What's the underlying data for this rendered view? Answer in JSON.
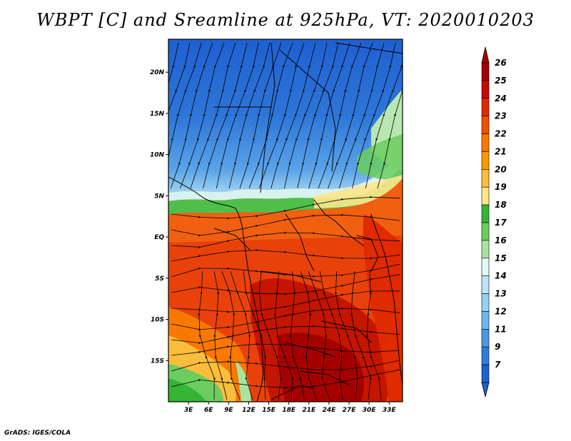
{
  "title": "WBPT [C] and Sreamline at 925hPa, VT: 2020010203",
  "footer": "GrADS: IGES/COLA",
  "map": {
    "lon_range": [
      0,
      35
    ],
    "lat_range": [
      -20,
      24
    ],
    "lat_ticks": [
      {
        "value": 20,
        "label": "20N"
      },
      {
        "value": 15,
        "label": "15N"
      },
      {
        "value": 10,
        "label": "10N"
      },
      {
        "value": 5,
        "label": "5N"
      },
      {
        "value": 0,
        "label": "EQ"
      },
      {
        "value": -5,
        "label": "5S"
      },
      {
        "value": -10,
        "label": "10S"
      },
      {
        "value": -15,
        "label": "15S"
      }
    ],
    "lon_ticks": [
      {
        "value": 3,
        "label": "3E"
      },
      {
        "value": 6,
        "label": "6E"
      },
      {
        "value": 9,
        "label": "9E"
      },
      {
        "value": 12,
        "label": "12E"
      },
      {
        "value": 15,
        "label": "15E"
      },
      {
        "value": 18,
        "label": "18E"
      },
      {
        "value": 21,
        "label": "21E"
      },
      {
        "value": 24,
        "label": "24E"
      },
      {
        "value": 27,
        "label": "27E"
      },
      {
        "value": 30,
        "label": "30E"
      },
      {
        "value": 33,
        "label": "33E"
      }
    ]
  },
  "colorbar": {
    "levels": [
      {
        "label": "26",
        "color": "#a50000"
      },
      {
        "label": "25",
        "color": "#c80a00"
      },
      {
        "label": "24",
        "color": "#e02a00"
      },
      {
        "label": "23",
        "color": "#f05000"
      },
      {
        "label": "22",
        "color": "#f87800"
      },
      {
        "label": "21",
        "color": "#fa9a00"
      },
      {
        "label": "20",
        "color": "#fbbd3c"
      },
      {
        "label": "19",
        "color": "#fde68c"
      },
      {
        "label": "18",
        "color": "#35b435"
      },
      {
        "label": "17",
        "color": "#6ccd5e"
      },
      {
        "label": "16",
        "color": "#a8e4a0"
      },
      {
        "label": "15",
        "color": "#e5f8f8"
      },
      {
        "label": "14",
        "color": "#bee3f8"
      },
      {
        "label": "13",
        "color": "#96d0f5"
      },
      {
        "label": "12",
        "color": "#6eb5ee"
      },
      {
        "label": "11",
        "color": "#4c98e3"
      },
      {
        "label": "9",
        "color": "#2f7ed8"
      },
      {
        "label": "7",
        "color": "#1a63cc"
      }
    ]
  }
}
